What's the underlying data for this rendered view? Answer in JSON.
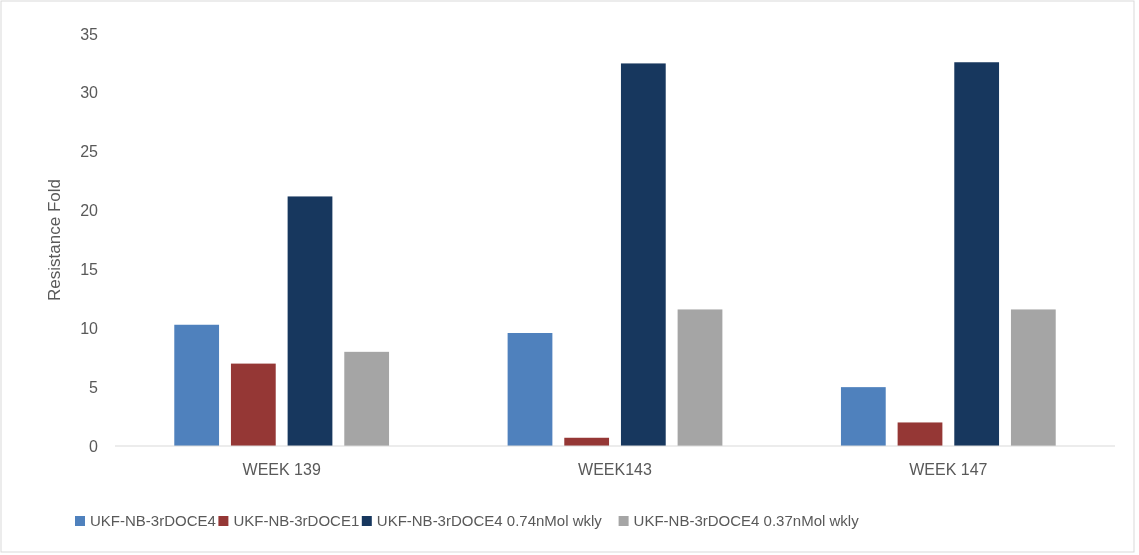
{
  "chart_data": {
    "type": "bar",
    "ylabel": "Resistance Fold",
    "categories": [
      "WEEK 139",
      "WEEK143",
      "WEEK 147"
    ],
    "series": [
      {
        "name": "UKF-NB-3rDOCE4",
        "color": "#4f81bd",
        "values": [
          10.3,
          9.6,
          5.0
        ]
      },
      {
        "name": "UKF-NB-3rDOCE1",
        "color": "#953735",
        "values": [
          7.0,
          0.7,
          2.0
        ]
      },
      {
        "name": "UKF-NB-3rDOCE4 0.74nMol wkly",
        "color": "#17375e",
        "values": [
          21.2,
          32.5,
          32.6
        ]
      },
      {
        "name": "UKF-NB-3rDOCE4 0.37nMol wkly",
        "color": "#a5a5a5",
        "values": [
          8.0,
          11.6,
          11.6
        ]
      }
    ],
    "ylim": [
      0,
      35
    ],
    "yticks": [
      0,
      5,
      10,
      15,
      20,
      25,
      30,
      35
    ],
    "grid": false,
    "legend": "bottom"
  }
}
